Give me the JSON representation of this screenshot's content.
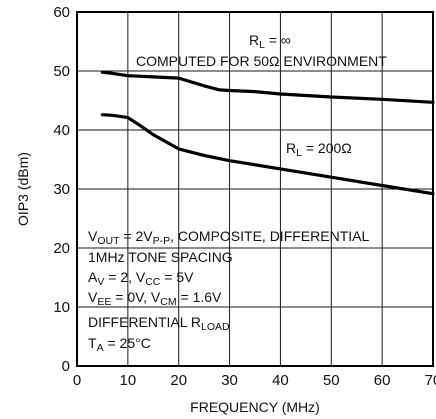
{
  "chart_data": {
    "type": "line",
    "xlabel": "FREQUENCY (MHz)",
    "ylabel": "OIP3 (dBm)",
    "xlim": [
      0,
      70
    ],
    "ylim": [
      0,
      60
    ],
    "x_ticks": [
      0,
      10,
      20,
      30,
      40,
      50,
      60,
      70
    ],
    "y_ticks": [
      0,
      10,
      20,
      30,
      40,
      50,
      60
    ],
    "x_tick_labels": [
      "0",
      "10",
      "20",
      "30",
      "40",
      "50",
      "60",
      "70"
    ],
    "y_tick_labels": [
      "0",
      "10",
      "20",
      "30",
      "40",
      "50",
      "60"
    ],
    "grid": true,
    "series": [
      {
        "x": [
          5,
          7,
          10,
          15,
          20,
          25,
          28,
          30,
          35,
          40,
          50,
          60,
          70
        ],
        "y": [
          49.8,
          49.6,
          49.2,
          49.0,
          48.8,
          47.5,
          46.8,
          46.7,
          46.5,
          46.1,
          45.6,
          45.2,
          44.7
        ]
      },
      {
        "x": [
          5,
          7,
          10,
          12,
          15,
          20,
          25,
          30,
          40,
          50,
          60,
          70
        ],
        "y": [
          42.6,
          42.5,
          42.1,
          41.0,
          39.2,
          36.8,
          35.7,
          34.8,
          33.4,
          32.0,
          30.6,
          29.2
        ]
      }
    ],
    "annotations": {
      "rl_inf": [
        "R",
        "L",
        " = ∞"
      ],
      "computed": "COMPUTED FOR 50Ω ENVIRONMENT",
      "rl_200": [
        "R",
        "L",
        " = 200Ω"
      ],
      "cond1": [
        "V",
        "OUT",
        " = 2V",
        "P-P",
        ", COMPOSITE, DIFFERENTIAL"
      ],
      "cond2": "1MHz TONE SPACING",
      "cond3": [
        "A",
        "V",
        " = 2, V",
        "CC",
        " = 5V"
      ],
      "cond4": [
        "V",
        "EE",
        " = 0V, V",
        "CM",
        " = 1.6V"
      ],
      "cond5": [
        "DIFFERENTIAL R",
        "LOAD"
      ],
      "cond6": [
        "T",
        "A",
        " = 25°C"
      ]
    }
  }
}
